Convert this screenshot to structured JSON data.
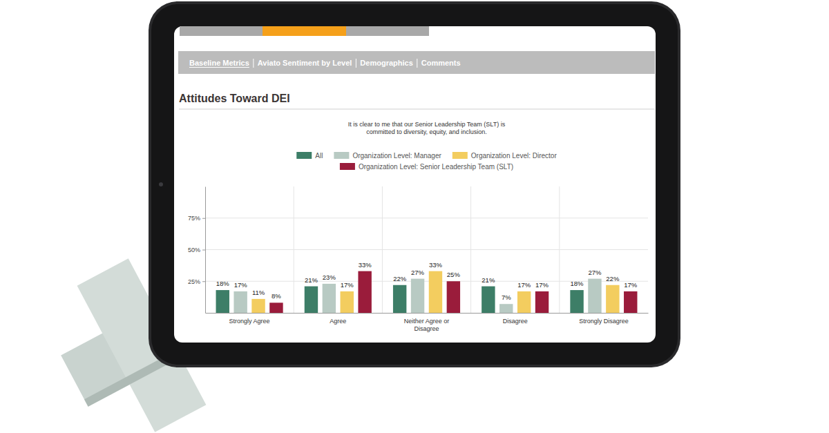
{
  "page": {
    "nav": [
      "Baseline Metrics",
      "Aviato Sentiment by Level",
      "Demographics",
      "Comments"
    ],
    "heading": "Attitudes Toward DEI"
  },
  "chart_data": {
    "type": "bar",
    "title": "It is clear to me that our Senior Leadership Team (SLT) is committed to diversity, equity, and inclusion.",
    "categories": [
      "Strongly Agree",
      "Agree",
      "Neither Agree or Disagree",
      "Disagree",
      "Strongly Disagree"
    ],
    "series": [
      {
        "name": "All",
        "color": "#3d7e67",
        "values": [
          18,
          21,
          22,
          21,
          18
        ],
        "value_labels": [
          "18%",
          "21%",
          "22%",
          "21%",
          "18%"
        ]
      },
      {
        "name": "Organization Level: Manager",
        "color": "#b8cac3",
        "values": [
          17,
          23,
          27,
          7,
          27
        ],
        "value_labels": [
          "17%",
          "23%",
          "27%",
          "7%",
          "27%"
        ]
      },
      {
        "name": "Organization Level: Director",
        "color": "#f3cd5f",
        "values": [
          11,
          17,
          33,
          17,
          22
        ],
        "value_labels": [
          "11%",
          "17%",
          "33%",
          "17%",
          "22%"
        ]
      },
      {
        "name": "Organization Level: Senior Leadership Team (SLT)",
        "color": "#9a1c3b",
        "values": [
          8,
          33,
          25,
          17,
          17
        ],
        "value_labels": [
          "8%",
          "33%",
          "25%",
          "17%",
          "17%"
        ]
      }
    ],
    "ylim": [
      0,
      100
    ],
    "yticks": [
      {
        "value": 25,
        "label": "25%"
      },
      {
        "value": 50,
        "label": "50%"
      },
      {
        "value": 75,
        "label": "75%"
      }
    ],
    "grid": true,
    "legend": "top",
    "data_labels": true
  }
}
